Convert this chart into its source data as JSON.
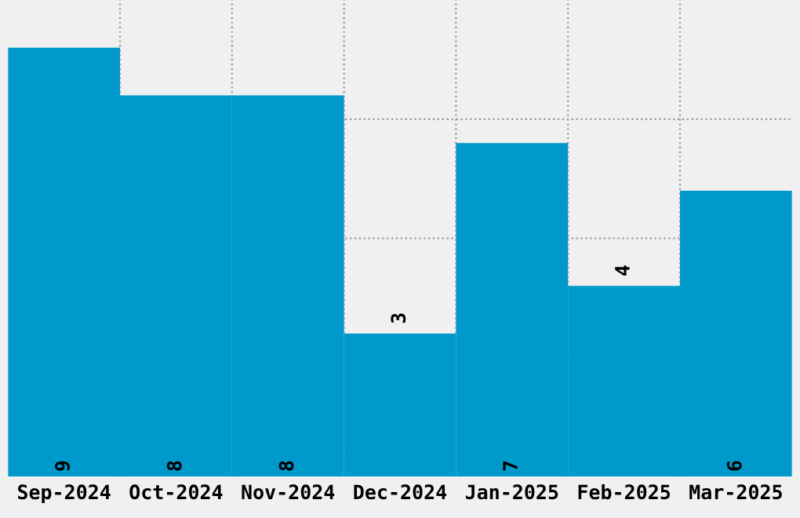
{
  "chart_data": {
    "type": "bar",
    "categories": [
      "Sep-2024",
      "Oct-2024",
      "Nov-2024",
      "Dec-2024",
      "Jan-2025",
      "Feb-2025",
      "Mar-2025"
    ],
    "values": [
      9,
      8,
      8,
      3,
      7,
      4,
      6
    ],
    "color": "#0099cc",
    "ylim": [
      0,
      10
    ],
    "yticks": [
      {
        "value": 2.5,
        "label": null
      },
      {
        "value": 5,
        "label": null
      },
      {
        "value": 7.5,
        "label": null
      }
    ],
    "tick_labels": "x",
    "data_labels": true,
    "grid": true
  }
}
